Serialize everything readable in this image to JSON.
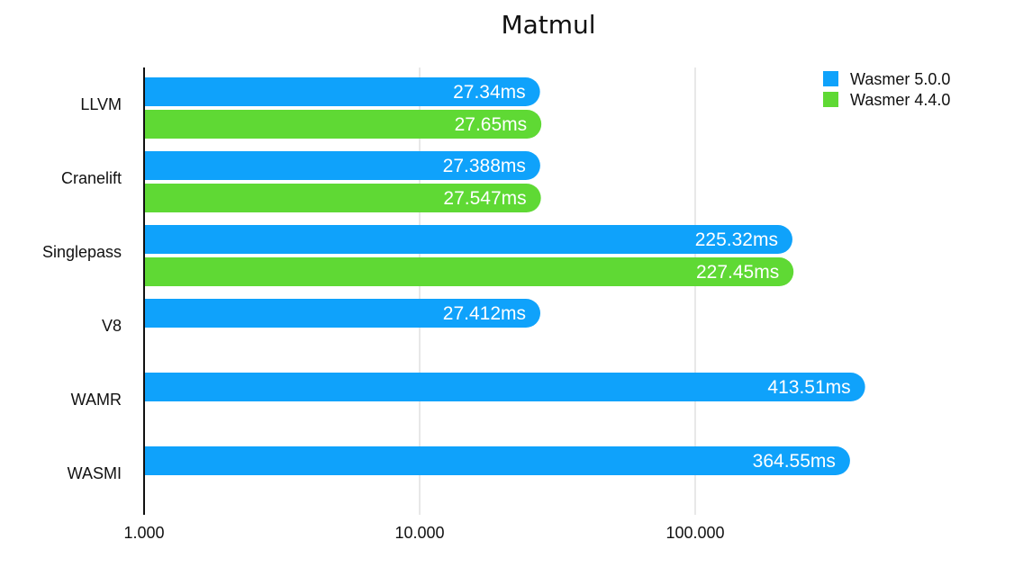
{
  "chart_data": {
    "type": "bar",
    "orientation": "horizontal",
    "title": "Matmul",
    "xlabel": "",
    "ylabel": "",
    "x_scale": "log",
    "xlim": [
      1,
      1000
    ],
    "x_ticks": [
      {
        "value": 1,
        "label": "1.000"
      },
      {
        "value": 10,
        "label": "10.000"
      },
      {
        "value": 100,
        "label": "100.000"
      }
    ],
    "grid": "vertical",
    "legend_position": "top-right",
    "categories": [
      "LLVM",
      "Cranelift",
      "Singlepass",
      "V8",
      "WAMR",
      "WASMI"
    ],
    "series": [
      {
        "name": "Wasmer 5.0.0",
        "color": "#0fa2fb",
        "values": [
          27.34,
          27.388,
          225.32,
          27.412,
          413.51,
          364.55
        ],
        "labels": [
          "27.34ms",
          "27.388ms",
          "225.32ms",
          "27.412ms",
          "413.51ms",
          "364.55ms"
        ]
      },
      {
        "name": "Wasmer 4.4.0",
        "color": "#5fd934",
        "values": [
          27.65,
          27.547,
          227.45,
          null,
          null,
          null
        ],
        "labels": [
          "27.65ms",
          "27.547ms",
          "227.45ms",
          null,
          null,
          null
        ]
      }
    ]
  }
}
